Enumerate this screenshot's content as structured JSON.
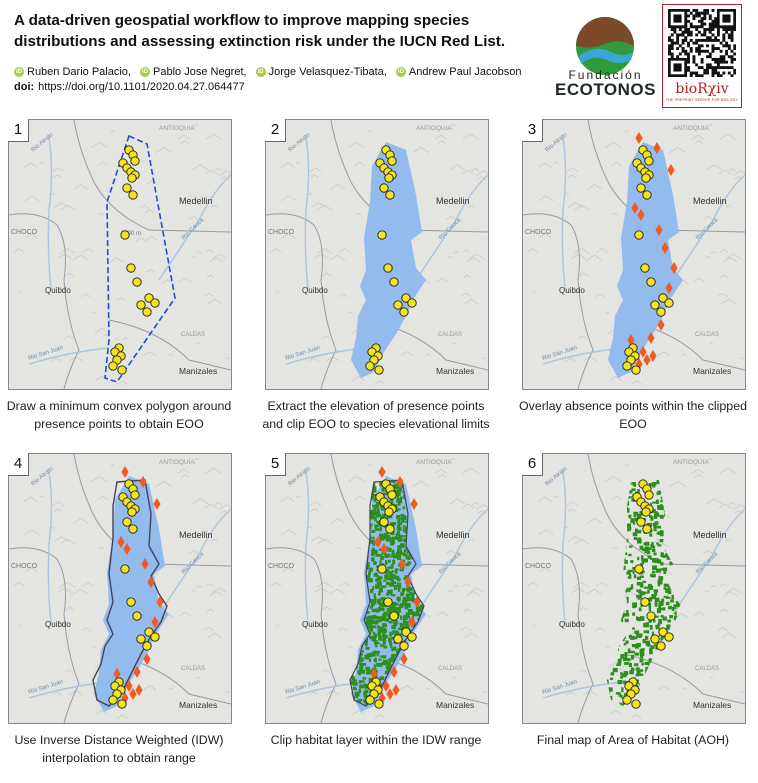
{
  "header": {
    "title": "A data-driven geospatial workflow to improve mapping species distributions and assessing extinction risk under the IUCN Red List.",
    "authors": [
      "Ruben Dario Palacio,",
      "Pablo Jose Negret,",
      "Jorge Velasquez-Tibata,",
      "Andrew Paul Jacobson"
    ],
    "orcid_glyph": "iD",
    "doi_label": "doi:",
    "doi_value": "https://doi.org/10.1101/2020.04.27.064477"
  },
  "logos": {
    "fundacion": "Fundación",
    "ecotonos": "ECOTONOS",
    "biorxiv": "bioRχiv",
    "biorxiv_tagline": "THE PREPRINT SERVER FOR BIOLOGY"
  },
  "map_labels": {
    "antioquia": "ANTIOQUIA",
    "medellin": "Medellin",
    "choco": "CHOCO",
    "quibdo": "Quibdo",
    "manizales": "Manizales",
    "caldas": "CALDAS",
    "rio_atrato": "Rio Atrato",
    "rio_san_juan": "Rio San Juan",
    "rio_cauca": "Rio Cauca",
    "contour": "2700 m"
  },
  "colors": {
    "presence": "#f5e31c",
    "absence": "#f25a23",
    "eoo_fill": "#93bbee",
    "habitat": "#2d8f1e"
  },
  "panels": [
    {
      "number": "1",
      "caption": "Draw a minimum convex polygon around presence points to obtain EOO"
    },
    {
      "number": "2",
      "caption": "Extract the elevation of presence points and clip EOO to species elevational limits"
    },
    {
      "number": "3",
      "caption": "Overlay absence points within the clipped EOO"
    },
    {
      "number": "4",
      "caption": "Use Inverse Distance Weighted (IDW) interpolation to obtain range"
    },
    {
      "number": "5",
      "caption": "Clip habitat layer within the IDW range"
    },
    {
      "number": "6",
      "caption": "Final map of Area of Habitat (AOH)"
    }
  ]
}
